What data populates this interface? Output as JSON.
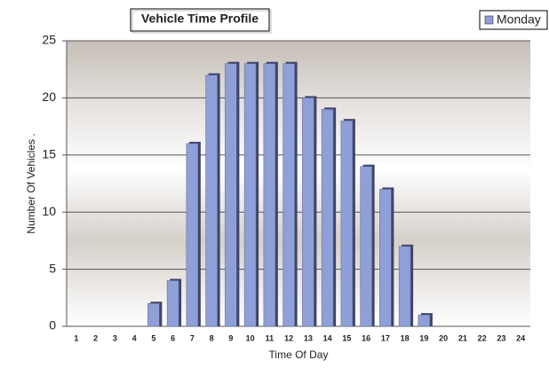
{
  "chart_data": {
    "type": "bar",
    "title": "Vehicle Time Profile",
    "x_label": "Time Of Day",
    "y_label": "Number Of Vehicles .",
    "categories": [
      "1",
      "2",
      "3",
      "4",
      "5",
      "6",
      "7",
      "8",
      "9",
      "10",
      "11",
      "12",
      "13",
      "14",
      "15",
      "16",
      "17",
      "18",
      "19",
      "20",
      "21",
      "22",
      "23",
      "24"
    ],
    "series": [
      {
        "name": "Monday",
        "color": "#8f9fd8",
        "values": [
          0,
          0,
          0,
          0,
          2,
          4,
          16,
          22,
          23,
          23,
          23,
          23,
          20,
          19,
          18,
          14,
          12,
          7,
          1,
          0,
          0,
          0,
          0,
          0
        ]
      }
    ],
    "ylim": [
      0,
      25
    ],
    "yticks": [
      0,
      5,
      10,
      15,
      20,
      25
    ],
    "grid": true,
    "legend": "top-right"
  }
}
